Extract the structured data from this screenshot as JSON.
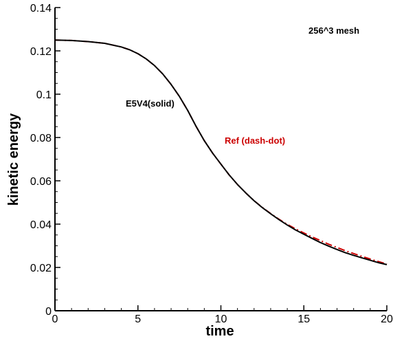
{
  "chart_data": {
    "type": "line",
    "xlabel": "time",
    "ylabel": "kinetic energy",
    "xlim": [
      0,
      20
    ],
    "ylim": [
      0,
      0.14
    ],
    "x_ticks": [
      "0",
      "5",
      "10",
      "15",
      "20"
    ],
    "y_ticks": [
      "0",
      "0.02",
      "0.04",
      "0.06",
      "0.08",
      "0.1",
      "0.12",
      "0.14"
    ],
    "grid": false,
    "annotations": {
      "mesh": "256^3 mesh",
      "solid_label": "E5V4(solid)",
      "ref_label": "Ref (dash-dot)"
    },
    "colors": {
      "solid": "#000000",
      "ref": "#cc0000"
    },
    "series": [
      {
        "style": "solid",
        "x": [
          0,
          1,
          2,
          3,
          4,
          4.5,
          5,
          5.5,
          6,
          6.5,
          7,
          7.5,
          8,
          8.5,
          9,
          9.5,
          10,
          10.5,
          11,
          11.5,
          12,
          12.5,
          13,
          13.5,
          14,
          14.5,
          15,
          15.5,
          16,
          16.5,
          17,
          17.5,
          18,
          18.5,
          19,
          19.5,
          20
        ],
        "y": [
          0.125,
          0.1248,
          0.1243,
          0.1235,
          0.1218,
          0.1205,
          0.1187,
          0.1163,
          0.1132,
          0.1093,
          0.1045,
          0.099,
          0.0925,
          0.0852,
          0.0785,
          0.0728,
          0.0677,
          0.0627,
          0.0583,
          0.0544,
          0.0508,
          0.0476,
          0.0448,
          0.0421,
          0.0396,
          0.0373,
          0.0353,
          0.0334,
          0.0315,
          0.0298,
          0.0283,
          0.0268,
          0.0256,
          0.0244,
          0.0233,
          0.0222,
          0.0213
        ]
      },
      {
        "style": "dash-dot",
        "x": [
          0,
          1,
          2,
          3,
          4,
          4.5,
          5,
          5.5,
          6,
          6.5,
          7,
          7.5,
          8,
          8.5,
          9,
          9.5,
          10,
          10.5,
          11,
          11.5,
          12,
          12.5,
          13,
          13.5,
          14,
          14.5,
          15,
          15.5,
          16,
          16.5,
          17,
          17.5,
          18,
          18.5,
          19,
          19.5,
          20
        ],
        "y": [
          0.125,
          0.1248,
          0.1243,
          0.1235,
          0.1218,
          0.1205,
          0.1187,
          0.1163,
          0.1132,
          0.1093,
          0.1045,
          0.099,
          0.0925,
          0.0852,
          0.0785,
          0.0728,
          0.0677,
          0.0627,
          0.0583,
          0.0544,
          0.0508,
          0.0477,
          0.0449,
          0.0423,
          0.0399,
          0.0378,
          0.0359,
          0.0341,
          0.0324,
          0.0307,
          0.0292,
          0.0277,
          0.0264,
          0.0251,
          0.0239,
          0.0227,
          0.0216
        ]
      }
    ]
  }
}
